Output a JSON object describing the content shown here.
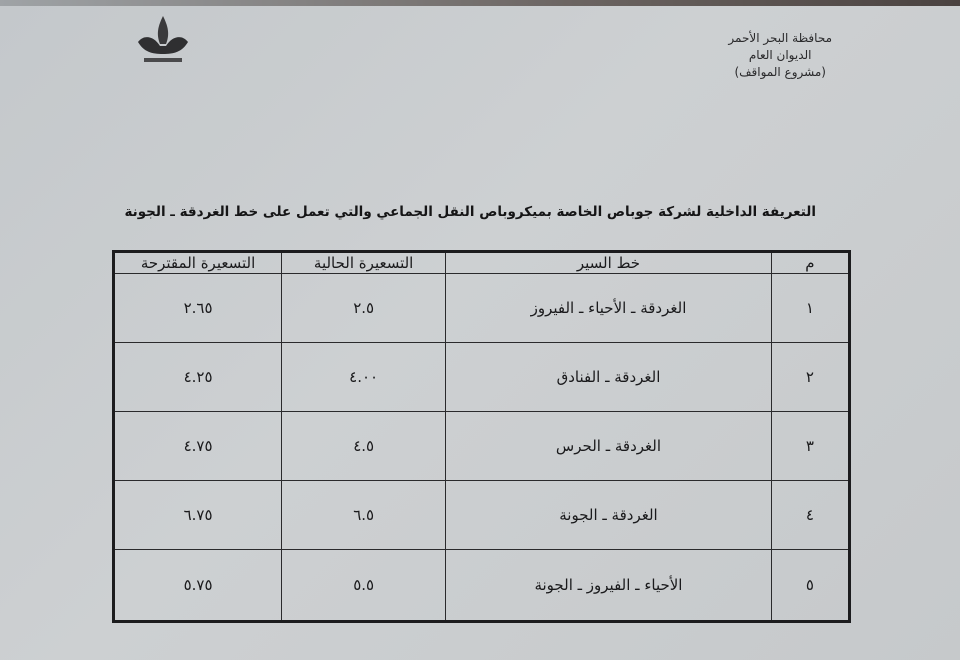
{
  "header": {
    "lines": [
      "محافظة البحر الأحمر",
      "الديوان العام",
      "(مشروع المواقف)"
    ],
    "logo": "red-sea-governorate-emblem"
  },
  "title": "التعريفة الداخلية لشركة جوباص الخاصة بميكروباص النقل الجماعي والتي تعمل على خط الغردقة ـ الجونة",
  "table": {
    "columns": [
      "م",
      "خط السير",
      "التسعيرة الحالية",
      "التسعيرة المقترحة"
    ],
    "rows": [
      [
        "١",
        "الغردقة ـ الأحياء ـ الفيروز",
        "٢.٥",
        "٢.٦٥"
      ],
      [
        "٢",
        "الغردقة ـ الفنادق",
        "٤.٠٠",
        "٤.٢٥"
      ],
      [
        "٣",
        "الغردقة ـ الحرس",
        "٤.٥",
        "٤.٧٥"
      ],
      [
        "٤",
        "الغردقة ـ الجونة",
        "٦.٥",
        "٦.٧٥"
      ],
      [
        "٥",
        "الأحياء ـ الفيروز ـ الجونة",
        "٥.٥",
        "٥.٧٥"
      ]
    ]
  }
}
